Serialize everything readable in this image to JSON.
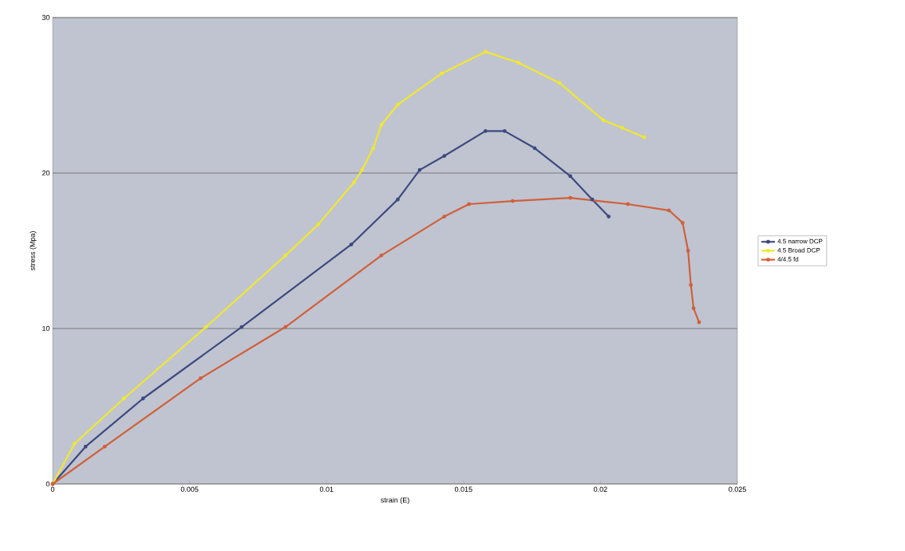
{
  "chart_data": {
    "type": "line",
    "xlabel": "strain (E)",
    "ylabel": "stress (Mpa)",
    "xlim": [
      0,
      0.025
    ],
    "xticks": [
      0,
      0.005,
      0.01,
      0.015,
      0.02,
      0.025
    ],
    "ylim": [
      0,
      30
    ],
    "yticks": [
      0,
      10,
      20,
      30
    ],
    "grid": "y",
    "legend": "right",
    "marker": "circle",
    "series": [
      {
        "name": "4.5 narrow DCP",
        "color": "#3d4a80",
        "x": [
          0,
          0.0012,
          0.0033,
          0.0069,
          0.0109,
          0.0126,
          0.0134,
          0.0143,
          0.0158,
          0.0165,
          0.0176,
          0.0189,
          0.0197,
          0.0203
        ],
        "values": [
          0,
          2.4,
          5.5,
          10.1,
          15.4,
          18.3,
          20.2,
          21.1,
          22.7,
          22.7,
          21.6,
          19.8,
          18.3,
          17.2
        ]
      },
      {
        "name": "4.5 Broad DCP",
        "color": "#f0e830",
        "x": [
          0,
          0.0008,
          0.0026,
          0.0056,
          0.0085,
          0.0097,
          0.011,
          0.0113,
          0.0117,
          0.012,
          0.0126,
          0.0142,
          0.0158,
          0.017,
          0.0185,
          0.0201,
          0.0208,
          0.0216
        ],
        "values": [
          0,
          2.6,
          5.5,
          10.1,
          14.7,
          16.7,
          19.4,
          20.2,
          21.6,
          23.1,
          24.4,
          26.4,
          27.8,
          27.1,
          25.8,
          23.4,
          22.9,
          22.3
        ]
      },
      {
        "name": "4/4.5 fd",
        "color": "#d0603a",
        "x": [
          0,
          0.0019,
          0.0054,
          0.0085,
          0.012,
          0.0143,
          0.0152,
          0.0168,
          0.0189,
          0.021,
          0.0225,
          0.023,
          0.0232,
          0.0233,
          0.0234,
          0.0236
        ],
        "values": [
          0,
          2.4,
          6.8,
          10.1,
          14.7,
          17.2,
          18.0,
          18.2,
          18.4,
          18.0,
          17.6,
          16.8,
          15.0,
          12.8,
          11.3,
          10.4
        ]
      }
    ]
  }
}
